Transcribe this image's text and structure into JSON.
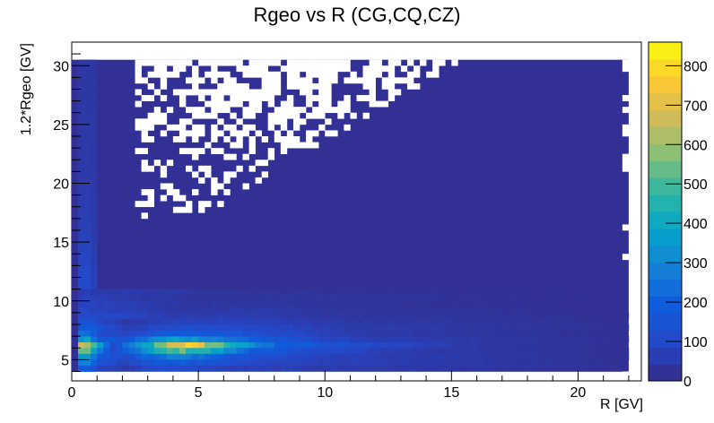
{
  "chart_data": {
    "type": "heatmap",
    "title": "Rgeo vs R (CG,CQ,CZ)",
    "xlabel": "R [GV]",
    "ylabel": "1.2*Rgeo [GV]",
    "xlim": [
      0,
      22.5
    ],
    "ylim": [
      3.2,
      32
    ],
    "x_ticks": [
      0,
      5,
      10,
      15,
      20
    ],
    "y_ticks": [
      5,
      10,
      15,
      20,
      25,
      30
    ],
    "data_x_range": [
      0,
      22
    ],
    "data_y_range": [
      4,
      30.5
    ],
    "bin_width": 0.25,
    "bin_height": 0.5,
    "colorbar": {
      "range": [
        0,
        860
      ],
      "ticks": [
        0,
        100,
        200,
        300,
        400,
        500,
        600,
        700,
        800
      ],
      "palette": [
        "#352a87",
        "#2548c8",
        "#0f5cdd",
        "#1481d6",
        "#06a4ca",
        "#2eb7a4",
        "#87bf77",
        "#d1bb59",
        "#fec832",
        "#f9fb0e"
      ]
    },
    "background_level": 20,
    "band": {
      "rows": [
        {
          "y": 6.25,
          "x": [
            0.5,
            1,
            1.5,
            2,
            3,
            3.5,
            4,
            4.5,
            5,
            6,
            7,
            8,
            10,
            12,
            14,
            16,
            18,
            20,
            22
          ],
          "values": [
            640,
            330,
            120,
            220,
            420,
            600,
            730,
            740,
            650,
            470,
            300,
            210,
            140,
            100,
            70,
            45,
            35,
            28,
            22
          ]
        },
        {
          "y": 5.75,
          "x": [
            0.5,
            1,
            1.5,
            2,
            3,
            4,
            5,
            6,
            7,
            8,
            10,
            12,
            14,
            22
          ],
          "values": [
            520,
            240,
            110,
            180,
            360,
            520,
            450,
            320,
            200,
            150,
            100,
            70,
            50,
            20
          ]
        },
        {
          "y": 6.75,
          "x": [
            0.5,
            1,
            2,
            3,
            4,
            5,
            6,
            8,
            10,
            12,
            22
          ],
          "values": [
            350,
            170,
            150,
            280,
            380,
            330,
            250,
            150,
            90,
            60,
            20
          ]
        },
        {
          "y": 5.25,
          "x": [
            0.5,
            1,
            2,
            3,
            4,
            5,
            6,
            8,
            10,
            22
          ],
          "values": [
            380,
            180,
            110,
            230,
            290,
            240,
            170,
            110,
            70,
            20
          ]
        },
        {
          "y": 7.25,
          "x": [
            0.5,
            1,
            2,
            3,
            4,
            6,
            8,
            10,
            12,
            22
          ],
          "values": [
            250,
            120,
            80,
            150,
            200,
            160,
            110,
            70,
            50,
            20
          ]
        },
        {
          "y": 4.75,
          "x": [
            0.5,
            1,
            2,
            3,
            4,
            6,
            8,
            22
          ],
          "values": [
            280,
            130,
            80,
            160,
            190,
            130,
            80,
            20
          ]
        },
        {
          "y": 4.25,
          "x": [
            0.5,
            1,
            2,
            3,
            4,
            6,
            22
          ],
          "values": [
            180,
            90,
            50,
            100,
            110,
            70,
            20
          ]
        },
        {
          "y": 7.75,
          "x": [
            0.5,
            2,
            4,
            6,
            8,
            10,
            22
          ],
          "values": [
            180,
            60,
            120,
            110,
            90,
            60,
            20
          ]
        },
        {
          "y": 8.25,
          "x": [
            0.5,
            2,
            4,
            6,
            8,
            10,
            22
          ],
          "values": [
            130,
            45,
            80,
            80,
            70,
            50,
            20
          ]
        },
        {
          "y": 8.75,
          "x": [
            0.5,
            4,
            7,
            10,
            22
          ],
          "values": [
            110,
            60,
            60,
            40,
            20
          ]
        },
        {
          "y": 9.25,
          "x": [
            0.5,
            4,
            7,
            10,
            22
          ],
          "values": [
            90,
            45,
            50,
            35,
            20
          ]
        },
        {
          "y": 9.75,
          "x": [
            0.5,
            5,
            7,
            10,
            22
          ],
          "values": [
            80,
            35,
            40,
            30,
            20
          ]
        },
        {
          "y": 10.25,
          "x": [
            0.5,
            5,
            7,
            22
          ],
          "values": [
            70,
            30,
            35,
            20
          ]
        },
        {
          "y": 10.75,
          "x": [
            0.5,
            7,
            22
          ],
          "values": [
            60,
            30,
            20
          ]
        }
      ]
    },
    "empty_region": {
      "x_range": [
        2.5,
        15.5
      ],
      "y_range": [
        17,
        30.5
      ],
      "description": "sparse low-statistics region at low R / high Rgeo"
    }
  }
}
